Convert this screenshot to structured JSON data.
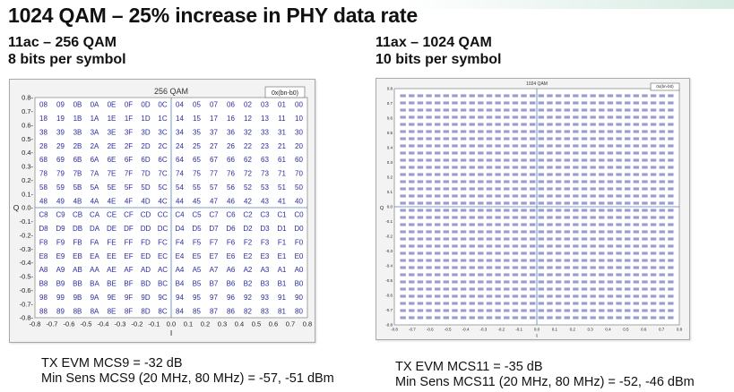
{
  "slide": {
    "title": "1024 QAM – 25% increase in PHY data rate"
  },
  "left": {
    "heading": "11ac – 256 QAM",
    "subheading": "8 bits per symbol",
    "footer_line1": "TX EVM MCS9 = -32 dB",
    "footer_line2": "Min Sens MCS9 (20 MHz, 80 MHz) = -57, -51 dBm"
  },
  "right": {
    "heading": "11ax – 1024 QAM",
    "subheading": "10 bits per symbol",
    "footer_line1": "TX EVM MCS11 = -35 dB",
    "footer_line2": "Min Sens MCS11 (20 MHz, 80 MHz) = -52, -46 dBm"
  },
  "chart_data": [
    {
      "type": "scatter",
      "title": "256 QAM",
      "legend": "0x(bn-b0)",
      "xlabel": "I",
      "ylabel": "Q",
      "xlim": [
        -0.8,
        0.8
      ],
      "ylim": [
        -0.8,
        0.8
      ],
      "x_ticks": [
        "-0.8",
        "-0.7",
        "-0.6",
        "-0.5",
        "-0.4",
        "-0.3",
        "-0.2",
        "-0.1",
        "0.0",
        "0.1",
        "0.2",
        "0.3",
        "0.4",
        "0.5",
        "0.6",
        "0.7",
        "0.8"
      ],
      "y_ticks": [
        "0.8-",
        "0.7-",
        "0.6-",
        "0.5-",
        "0.4-",
        "0.3-",
        "0.2-",
        "0.1-",
        "0.0-",
        "-0.1-",
        "-0.2-",
        "-0.3-",
        "-0.4-",
        "-0.5-",
        "-0.6-",
        "-0.7-",
        "-0.8-"
      ],
      "grid": false,
      "rows": [
        [
          "08",
          "09",
          "0B",
          "0A",
          "0E",
          "0F",
          "0D",
          "0C",
          "04",
          "05",
          "07",
          "06",
          "02",
          "03",
          "01",
          "00"
        ],
        [
          "18",
          "19",
          "1B",
          "1A",
          "1E",
          "1F",
          "1D",
          "1C",
          "14",
          "15",
          "17",
          "16",
          "12",
          "13",
          "11",
          "10"
        ],
        [
          "38",
          "39",
          "3B",
          "3A",
          "3E",
          "3F",
          "3D",
          "3C",
          "34",
          "35",
          "37",
          "36",
          "32",
          "33",
          "31",
          "30"
        ],
        [
          "28",
          "29",
          "2B",
          "2A",
          "2E",
          "2F",
          "2D",
          "2C",
          "24",
          "25",
          "27",
          "26",
          "22",
          "23",
          "21",
          "20"
        ],
        [
          "68",
          "69",
          "6B",
          "6A",
          "6E",
          "6F",
          "6D",
          "6C",
          "64",
          "65",
          "67",
          "66",
          "62",
          "63",
          "61",
          "60"
        ],
        [
          "78",
          "79",
          "7B",
          "7A",
          "7E",
          "7F",
          "7D",
          "7C",
          "74",
          "75",
          "77",
          "76",
          "72",
          "73",
          "71",
          "70"
        ],
        [
          "58",
          "59",
          "5B",
          "5A",
          "5E",
          "5F",
          "5D",
          "5C",
          "54",
          "55",
          "57",
          "56",
          "52",
          "53",
          "51",
          "50"
        ],
        [
          "48",
          "49",
          "4B",
          "4A",
          "4E",
          "4F",
          "4D",
          "4C",
          "44",
          "45",
          "47",
          "46",
          "42",
          "43",
          "41",
          "40"
        ],
        [
          "C8",
          "C9",
          "CB",
          "CA",
          "CE",
          "CF",
          "CD",
          "CC",
          "C4",
          "C5",
          "C7",
          "C6",
          "C2",
          "C3",
          "C1",
          "C0"
        ],
        [
          "D8",
          "D9",
          "DB",
          "DA",
          "DE",
          "DF",
          "DD",
          "DC",
          "D4",
          "D5",
          "D7",
          "D6",
          "D2",
          "D3",
          "D1",
          "D0"
        ],
        [
          "F8",
          "F9",
          "FB",
          "FA",
          "FE",
          "FF",
          "FD",
          "FC",
          "F4",
          "F5",
          "F7",
          "F6",
          "F2",
          "F3",
          "F1",
          "F0"
        ],
        [
          "E8",
          "E9",
          "EB",
          "EA",
          "EE",
          "EF",
          "ED",
          "EC",
          "E4",
          "E5",
          "E7",
          "E6",
          "E2",
          "E3",
          "E1",
          "E0"
        ],
        [
          "A8",
          "A9",
          "AB",
          "AA",
          "AE",
          "AF",
          "AD",
          "AC",
          "A4",
          "A5",
          "A7",
          "A6",
          "A2",
          "A3",
          "A1",
          "A0"
        ],
        [
          "B8",
          "B9",
          "BB",
          "BA",
          "BE",
          "BF",
          "BD",
          "BC",
          "B4",
          "B5",
          "B7",
          "B6",
          "B2",
          "B3",
          "B1",
          "B0"
        ],
        [
          "98",
          "99",
          "9B",
          "9A",
          "9E",
          "9F",
          "9D",
          "9C",
          "94",
          "95",
          "97",
          "96",
          "92",
          "93",
          "91",
          "90"
        ],
        [
          "88",
          "89",
          "8B",
          "8A",
          "8E",
          "8F",
          "8D",
          "8C",
          "84",
          "85",
          "87",
          "86",
          "82",
          "83",
          "81",
          "80"
        ]
      ]
    },
    {
      "type": "scatter",
      "title": "1024 QAM",
      "legend": "0x(bn-b0)",
      "xlabel": "I",
      "ylabel": "Q",
      "xlim": [
        -0.8,
        0.8
      ],
      "ylim": [
        -0.8,
        0.8
      ],
      "x_ticks": [
        "-0.8",
        "-0.7",
        "-0.6",
        "-0.5",
        "-0.4",
        "-0.3",
        "-0.2",
        "-0.1",
        "0.0",
        "0.1",
        "0.2",
        "0.3",
        "0.4",
        "0.5",
        "0.6",
        "0.7",
        "0.8"
      ],
      "y_ticks": [
        "0.8",
        "0.7",
        "0.6",
        "0.5",
        "0.4",
        "0.3",
        "0.2",
        "0.1",
        "0.0",
        "-0.1",
        "-0.2",
        "-0.3",
        "-0.4",
        "-0.5",
        "-0.6",
        "-0.7",
        "-0.8"
      ],
      "grid": false,
      "points": 1024
    }
  ]
}
